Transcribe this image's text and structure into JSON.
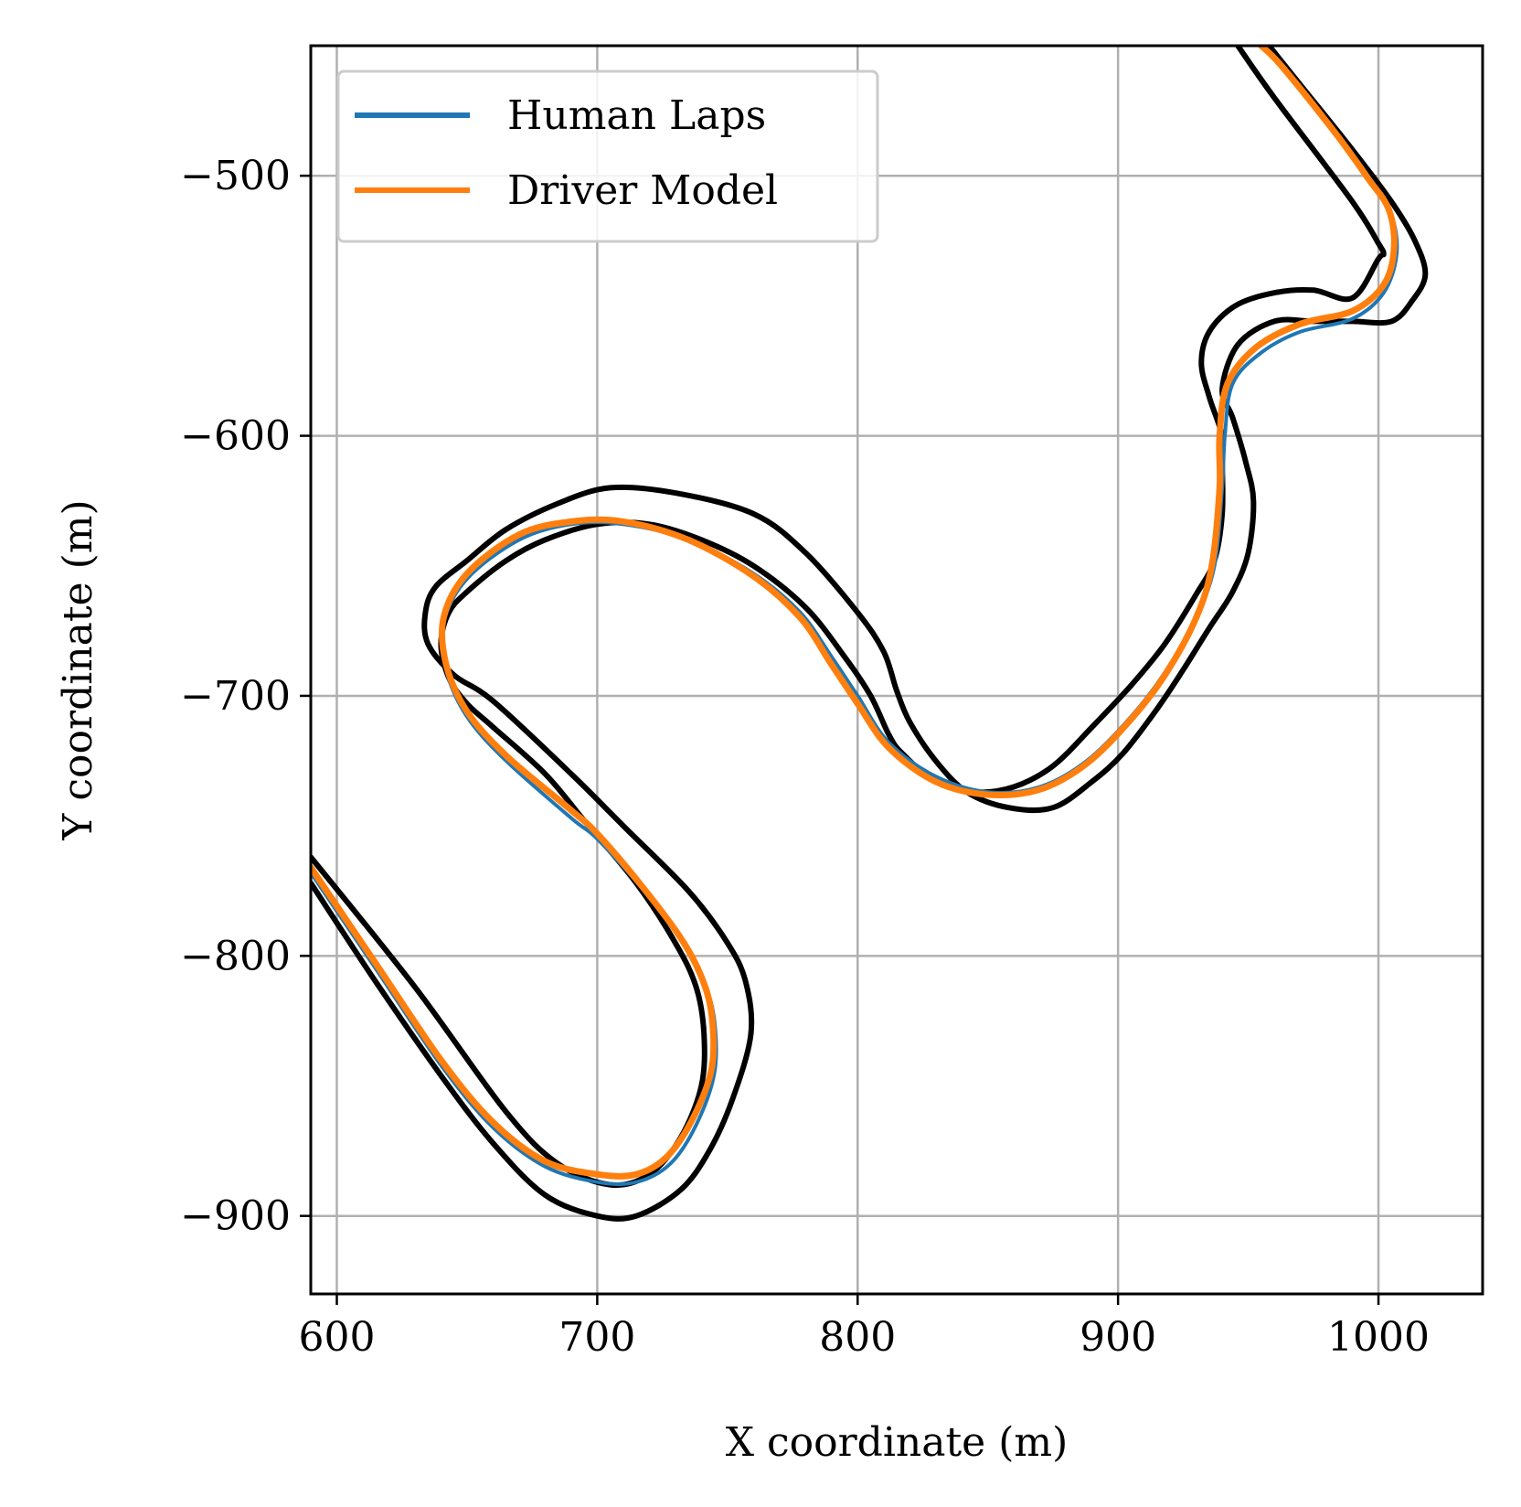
{
  "chart_data": {
    "type": "line",
    "xlabel": "X coordinate (m)",
    "ylabel": "Y coordinate (m)",
    "xlim": [
      590,
      1040
    ],
    "ylim": [
      -930,
      -450
    ],
    "xticks": [
      600,
      700,
      800,
      900,
      1000
    ],
    "yticks": [
      -500,
      -600,
      -700,
      -800,
      -900
    ],
    "xtick_labels": [
      "600",
      "700",
      "800",
      "900",
      "1000"
    ],
    "ytick_labels": [
      "−500",
      "−600",
      "−700",
      "−800",
      "−900"
    ],
    "grid": true,
    "legend_position": "top-left",
    "boundaries": [
      {
        "color": "#000000",
        "points": [
          [
            590,
            -762
          ],
          [
            630,
            -812
          ],
          [
            665,
            -860
          ],
          [
            685,
            -880
          ],
          [
            705,
            -888
          ],
          [
            720,
            -884
          ],
          [
            732,
            -870
          ],
          [
            740,
            -850
          ],
          [
            741,
            -830
          ],
          [
            738,
            -812
          ],
          [
            730,
            -795
          ],
          [
            715,
            -772
          ],
          [
            695,
            -748
          ],
          [
            680,
            -730
          ],
          [
            660,
            -712
          ],
          [
            650,
            -703
          ],
          [
            643,
            -693
          ],
          [
            640,
            -680
          ],
          [
            643,
            -668
          ],
          [
            650,
            -660
          ],
          [
            665,
            -648
          ],
          [
            680,
            -640
          ],
          [
            700,
            -634
          ],
          [
            720,
            -634
          ],
          [
            740,
            -640
          ],
          [
            760,
            -650
          ],
          [
            780,
            -666
          ],
          [
            795,
            -685
          ],
          [
            805,
            -700
          ],
          [
            812,
            -715
          ],
          [
            817,
            -722
          ],
          [
            830,
            -733
          ],
          [
            845,
            -737
          ],
          [
            860,
            -735
          ],
          [
            875,
            -727
          ],
          [
            890,
            -712
          ],
          [
            905,
            -696
          ],
          [
            918,
            -680
          ],
          [
            930,
            -661
          ],
          [
            937,
            -648
          ],
          [
            940,
            -630
          ],
          [
            940,
            -610
          ],
          [
            940,
            -600
          ],
          [
            935,
            -585
          ],
          [
            932,
            -572
          ],
          [
            935,
            -560
          ],
          [
            945,
            -550
          ],
          [
            960,
            -545
          ],
          [
            975,
            -544
          ],
          [
            990,
            -547
          ],
          [
            1000,
            -532
          ],
          [
            1002,
            -530
          ],
          [
            1000,
            -526
          ],
          [
            990,
            -510
          ],
          [
            960,
            -470
          ],
          [
            946,
            -450
          ]
        ]
      },
      {
        "color": "#000000",
        "points": [
          [
            590,
            -772
          ],
          [
            615,
            -810
          ],
          [
            640,
            -846
          ],
          [
            660,
            -872
          ],
          [
            680,
            -892
          ],
          [
            700,
            -900
          ],
          [
            715,
            -900
          ],
          [
            732,
            -890
          ],
          [
            743,
            -875
          ],
          [
            752,
            -855
          ],
          [
            759,
            -830
          ],
          [
            757,
            -810
          ],
          [
            750,
            -795
          ],
          [
            735,
            -775
          ],
          [
            710,
            -750
          ],
          [
            690,
            -730
          ],
          [
            660,
            -702
          ],
          [
            645,
            -692
          ],
          [
            635,
            -680
          ],
          [
            634,
            -668
          ],
          [
            638,
            -658
          ],
          [
            650,
            -648
          ],
          [
            665,
            -636
          ],
          [
            685,
            -626
          ],
          [
            705,
            -620
          ],
          [
            730,
            -622
          ],
          [
            760,
            -630
          ],
          [
            780,
            -645
          ],
          [
            800,
            -668
          ],
          [
            810,
            -683
          ],
          [
            815,
            -698
          ],
          [
            820,
            -710
          ],
          [
            830,
            -725
          ],
          [
            842,
            -737
          ],
          [
            858,
            -743
          ],
          [
            875,
            -743
          ],
          [
            890,
            -733
          ],
          [
            902,
            -722
          ],
          [
            915,
            -705
          ],
          [
            925,
            -690
          ],
          [
            935,
            -674
          ],
          [
            944,
            -660
          ],
          [
            950,
            -645
          ],
          [
            952,
            -625
          ],
          [
            949,
            -610
          ],
          [
            944,
            -593
          ],
          [
            940,
            -582
          ],
          [
            946,
            -565
          ],
          [
            960,
            -556
          ],
          [
            975,
            -556
          ],
          [
            990,
            -556
          ],
          [
            1005,
            -556
          ],
          [
            1013,
            -548
          ],
          [
            1018,
            -538
          ],
          [
            1014,
            -525
          ],
          [
            1005,
            -510
          ],
          [
            990,
            -490
          ],
          [
            970,
            -465
          ],
          [
            958,
            -450
          ]
        ]
      }
    ],
    "series": [
      {
        "name": "Human Laps",
        "color": "#1f77b4",
        "points": [
          [
            590,
            -768
          ],
          [
            615,
            -805
          ],
          [
            640,
            -842
          ],
          [
            660,
            -866
          ],
          [
            680,
            -881
          ],
          [
            700,
            -887
          ],
          [
            715,
            -887
          ],
          [
            728,
            -880
          ],
          [
            738,
            -865
          ],
          [
            745,
            -845
          ],
          [
            745,
            -825
          ],
          [
            741,
            -810
          ],
          [
            733,
            -795
          ],
          [
            718,
            -775
          ],
          [
            700,
            -755
          ],
          [
            690,
            -747
          ],
          [
            665,
            -725
          ],
          [
            650,
            -708
          ],
          [
            642,
            -690
          ],
          [
            641,
            -672
          ],
          [
            650,
            -655
          ],
          [
            670,
            -640
          ],
          [
            690,
            -634
          ],
          [
            710,
            -634
          ],
          [
            735,
            -640
          ],
          [
            760,
            -653
          ],
          [
            778,
            -668
          ],
          [
            790,
            -685
          ],
          [
            800,
            -700
          ],
          [
            812,
            -718
          ],
          [
            830,
            -731
          ],
          [
            850,
            -737
          ],
          [
            870,
            -735
          ],
          [
            888,
            -725
          ],
          [
            905,
            -708
          ],
          [
            918,
            -691
          ],
          [
            930,
            -670
          ],
          [
            937,
            -650
          ],
          [
            940,
            -620
          ],
          [
            941,
            -600
          ],
          [
            944,
            -580
          ],
          [
            955,
            -568
          ],
          [
            970,
            -560
          ],
          [
            990,
            -555
          ],
          [
            1002,
            -545
          ],
          [
            1007,
            -530
          ],
          [
            1005,
            -515
          ],
          [
            998,
            -503
          ],
          [
            985,
            -485
          ],
          [
            965,
            -461
          ],
          [
            956,
            -450
          ]
        ]
      },
      {
        "name": "Driver Model",
        "color": "#ff7f0e",
        "points": [
          [
            590,
            -766
          ],
          [
            615,
            -803
          ],
          [
            640,
            -840
          ],
          [
            660,
            -864
          ],
          [
            680,
            -879
          ],
          [
            700,
            -884
          ],
          [
            715,
            -884
          ],
          [
            727,
            -877
          ],
          [
            737,
            -862
          ],
          [
            744,
            -843
          ],
          [
            744,
            -823
          ],
          [
            740,
            -808
          ],
          [
            732,
            -793
          ],
          [
            717,
            -773
          ],
          [
            700,
            -753
          ],
          [
            690,
            -744
          ],
          [
            665,
            -723
          ],
          [
            650,
            -706
          ],
          [
            642,
            -688
          ],
          [
            641,
            -670
          ],
          [
            650,
            -653
          ],
          [
            670,
            -638
          ],
          [
            690,
            -633
          ],
          [
            710,
            -633
          ],
          [
            735,
            -640
          ],
          [
            760,
            -654
          ],
          [
            778,
            -670
          ],
          [
            790,
            -688
          ],
          [
            800,
            -703
          ],
          [
            812,
            -720
          ],
          [
            830,
            -733
          ],
          [
            850,
            -738
          ],
          [
            870,
            -736
          ],
          [
            888,
            -726
          ],
          [
            905,
            -709
          ],
          [
            918,
            -692
          ],
          [
            930,
            -670
          ],
          [
            936,
            -650
          ],
          [
            939,
            -620
          ],
          [
            939,
            -600
          ],
          [
            942,
            -580
          ],
          [
            953,
            -566
          ],
          [
            970,
            -557
          ],
          [
            990,
            -552
          ],
          [
            1002,
            -542
          ],
          [
            1006,
            -528
          ],
          [
            1004,
            -513
          ],
          [
            996,
            -501
          ],
          [
            983,
            -483
          ],
          [
            963,
            -458
          ],
          [
            955,
            -450
          ]
        ]
      }
    ]
  }
}
